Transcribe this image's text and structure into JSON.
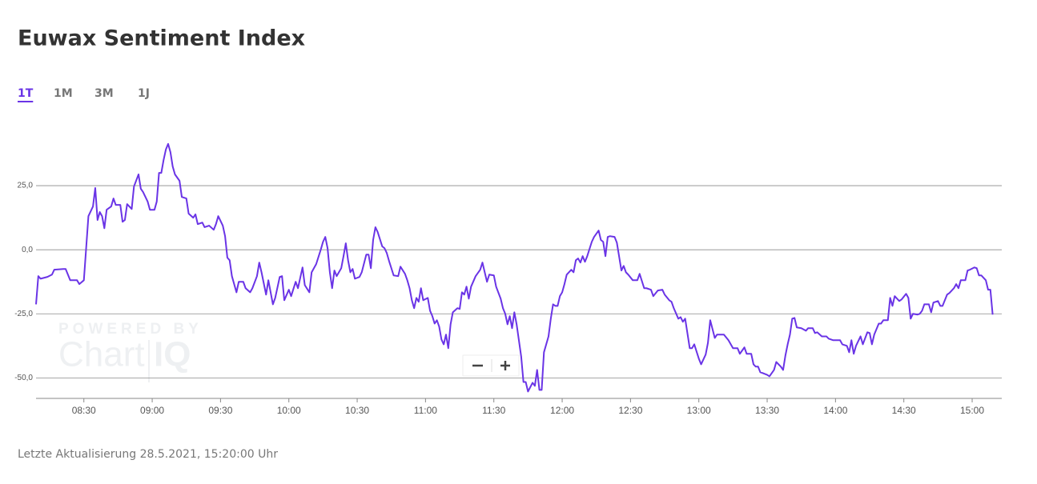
{
  "chart_data": {
    "type": "line",
    "title": "Euwax Sentiment Index",
    "color": "#6a34e6",
    "x": [
      "08:09",
      "08:10",
      "08:11",
      "08:14",
      "08:16",
      "08:17",
      "08:21",
      "08:22",
      "08:24",
      "08:27",
      "08:28",
      "08:30",
      "08:31",
      "08:32",
      "08:34",
      "08:35",
      "08:36",
      "08:37",
      "08:38",
      "08:39",
      "08:40",
      "08:42",
      "08:43",
      "08:44",
      "08:46",
      "08:47",
      "08:48",
      "08:49",
      "08:51",
      "08:52",
      "08:54",
      "08:55",
      "08:56",
      "08:58",
      "08:59",
      "09:01",
      "09:02",
      "09:03",
      "09:04",
      "09:05",
      "09:06",
      "09:07",
      "09:08",
      "09:09",
      "09:10",
      "09:12",
      "09:13",
      "09:15",
      "09:16",
      "09:18",
      "09:19",
      "09:20",
      "09:22",
      "09:23",
      "09:25",
      "09:27",
      "09:28",
      "09:29",
      "09:31",
      "09:32",
      "09:33",
      "09:34",
      "09:35",
      "09:37",
      "09:38",
      "09:40",
      "09:41",
      "09:43",
      "09:44",
      "09:46",
      "09:47",
      "09:48",
      "09:50",
      "09:51",
      "09:53",
      "09:54",
      "09:56",
      "09:57",
      "09:58",
      "10:00",
      "10:01",
      "10:03",
      "10:04",
      "10:06",
      "10:07",
      "10:09",
      "10:10",
      "10:12",
      "10:14",
      "10:15",
      "10:16",
      "10:17",
      "10:18",
      "10:19",
      "10:20",
      "10:21",
      "10:23",
      "10:24",
      "10:25",
      "10:26",
      "10:27",
      "10:28",
      "10:29",
      "10:31",
      "10:32",
      "10:34",
      "10:35",
      "10:36",
      "10:37",
      "10:38",
      "10:39",
      "10:41",
      "10:42",
      "10:43",
      "10:44",
      "10:45",
      "10:46",
      "10:48",
      "10:49",
      "10:51",
      "10:52",
      "10:53",
      "10:54",
      "10:55",
      "10:56",
      "10:57",
      "10:58",
      "10:59",
      "11:01",
      "11:02",
      "11:03",
      "11:04",
      "11:05",
      "11:06",
      "11:07",
      "11:08",
      "11:09",
      "11:10",
      "11:11",
      "11:12",
      "11:14",
      "11:15",
      "11:16",
      "11:17",
      "11:18",
      "11:19",
      "11:20",
      "11:22",
      "11:24",
      "11:25",
      "11:26",
      "11:27",
      "11:28",
      "11:30",
      "11:31",
      "11:33",
      "11:34",
      "11:35",
      "11:36",
      "11:37",
      "11:38",
      "11:39",
      "11:40",
      "11:42",
      "11:43",
      "11:44",
      "11:45",
      "11:47",
      "11:48",
      "11:49",
      "11:50",
      "11:51",
      "11:52",
      "11:54",
      "11:55",
      "11:56",
      "11:57",
      "11:58",
      "11:59",
      "12:00",
      "12:01",
      "12:02",
      "12:04",
      "12:05",
      "12:06",
      "12:07",
      "12:08",
      "12:09",
      "12:10",
      "12:11",
      "12:13",
      "12:14",
      "12:16",
      "12:17",
      "12:18",
      "12:19",
      "12:20",
      "12:21",
      "12:23",
      "12:24",
      "12:26",
      "12:27",
      "12:28",
      "12:29",
      "12:31",
      "12:33",
      "12:34",
      "12:36",
      "12:37",
      "12:39",
      "12:40",
      "12:42",
      "12:44",
      "12:45",
      "12:47",
      "12:48",
      "12:49",
      "12:51",
      "12:52",
      "12:53",
      "12:54",
      "12:56",
      "12:57",
      "12:58",
      "13:00",
      "13:01",
      "13:03",
      "13:04",
      "13:05",
      "13:07",
      "13:08",
      "13:10",
      "13:11",
      "13:13",
      "13:15",
      "13:17",
      "13:18",
      "13:20",
      "13:21",
      "13:23",
      "13:24",
      "13:25",
      "13:26",
      "13:27",
      "13:28",
      "13:30",
      "13:31",
      "13:33",
      "13:34",
      "13:36",
      "13:37",
      "13:38",
      "13:39",
      "13:40",
      "13:41",
      "13:42",
      "13:43",
      "13:45",
      "13:47",
      "13:48",
      "13:50",
      "13:51",
      "13:52",
      "13:54",
      "13:56",
      "13:57",
      "13:59",
      "14:01",
      "14:02",
      "14:03",
      "14:05",
      "14:06",
      "14:07",
      "14:08",
      "14:09",
      "14:11",
      "14:12",
      "14:14",
      "14:15",
      "14:16",
      "14:17",
      "14:19",
      "14:20",
      "14:21",
      "14:23",
      "14:24",
      "14:25",
      "14:26",
      "14:28",
      "14:29",
      "14:31",
      "14:32",
      "14:33",
      "14:34",
      "14:36",
      "14:37",
      "14:38",
      "14:39",
      "14:41",
      "14:42",
      "14:43",
      "14:45",
      "14:46",
      "14:47",
      "14:49",
      "14:50",
      "14:52",
      "14:53",
      "14:54",
      "14:55",
      "14:57",
      "14:58",
      "14:59",
      "15:01",
      "15:02",
      "15:03",
      "15:04",
      "15:06",
      "15:07",
      "15:08",
      "15:09"
    ],
    "values": [
      -21.3,
      -10.3,
      -11.3,
      -10.6,
      -9.7,
      -7.8,
      -7.5,
      -7.5,
      -11.9,
      -11.9,
      -13.4,
      -11.9,
      0.6,
      13.1,
      16.9,
      24.1,
      11.6,
      14.7,
      13.1,
      8.4,
      15.6,
      16.9,
      20,
      17.5,
      17.5,
      10.9,
      11.6,
      17.8,
      15.9,
      24.7,
      29.4,
      23.8,
      22.5,
      18.8,
      15.6,
      15.6,
      18.8,
      30,
      30,
      35,
      39.1,
      41.3,
      38.1,
      32.5,
      29.4,
      26.9,
      20.6,
      20,
      14.1,
      12.5,
      13.8,
      10,
      10.6,
      8.8,
      9.4,
      7.8,
      10,
      13.1,
      9.4,
      5.3,
      -3.1,
      -4.1,
      -10.3,
      -16.6,
      -12.5,
      -12.5,
      -15,
      -16.6,
      -15,
      -10.3,
      -5,
      -8.8,
      -17.5,
      -11.9,
      -21.3,
      -18.8,
      -10.6,
      -10.3,
      -19.7,
      -15.6,
      -18.1,
      -12.5,
      -15,
      -6.9,
      -13.8,
      -16.6,
      -8.8,
      -5.6,
      0,
      3.1,
      5,
      0.6,
      -8.8,
      -15,
      -8.1,
      -10.3,
      -7.2,
      -2.5,
      2.5,
      -4.1,
      -8.8,
      -7.5,
      -11.3,
      -10.6,
      -8.8,
      -1.9,
      -1.9,
      -7.2,
      3.8,
      8.8,
      6.9,
      1.3,
      0.6,
      -1.3,
      -4.4,
      -7.2,
      -10,
      -10.3,
      -6.6,
      -9.4,
      -11.9,
      -15,
      -19.7,
      -22.8,
      -18.8,
      -20.3,
      -15,
      -19.7,
      -18.8,
      -23.8,
      -25.9,
      -28.8,
      -27.5,
      -30,
      -35,
      -36.9,
      -33.1,
      -38.4,
      -29.1,
      -24.4,
      -22.8,
      -23.1,
      -16.6,
      -17.5,
      -14.4,
      -19.1,
      -14.4,
      -10.3,
      -7.8,
      -5,
      -8.8,
      -12.5,
      -9.7,
      -10,
      -14.4,
      -19.1,
      -22.8,
      -25,
      -29.1,
      -25.9,
      -30.6,
      -24.4,
      -29.1,
      -41.6,
      -51.6,
      -51.6,
      -55.3,
      -51.9,
      -53.1,
      -46.9,
      -54.7,
      -54.7,
      -40,
      -33.8,
      -26.9,
      -21.3,
      -21.9,
      -21.9,
      -18.1,
      -16.6,
      -13.4,
      -9.7,
      -7.8,
      -8.8,
      -4.1,
      -3.4,
      -5,
      -2.5,
      -4.7,
      -2.5,
      3.1,
      5,
      7.5,
      3.8,
      3.1,
      -2.5,
      5,
      5.3,
      5,
      2.8,
      -8.1,
      -6.3,
      -8.8,
      -9.7,
      -11.9,
      -11.9,
      -9.4,
      -15,
      -15,
      -15.6,
      -18.1,
      -15.9,
      -15.6,
      -17.5,
      -19.7,
      -20.3,
      -22.8,
      -26.9,
      -26.3,
      -28.1,
      -26.9,
      -38.4,
      -38.4,
      -36.9,
      -42.5,
      -44.7,
      -40.9,
      -36.3,
      -27.5,
      -34.4,
      -33.1,
      -33.1,
      -33.1,
      -35.3,
      -38.4,
      -38.4,
      -40.6,
      -38.1,
      -40.6,
      -40.6,
      -44.7,
      -45.6,
      -45.6,
      -47.8,
      -48.1,
      -48.8,
      -49.4,
      -46.9,
      -43.8,
      -45.6,
      -46.9,
      -41.3,
      -36.9,
      -33.1,
      -26.9,
      -26.6,
      -30.3,
      -30.6,
      -31.6,
      -30.6,
      -30.6,
      -32.5,
      -32.2,
      -33.8,
      -33.8,
      -34.7,
      -35.3,
      -35.3,
      -35.3,
      -36.9,
      -37.5,
      -40,
      -35.3,
      -40.6,
      -37.5,
      -33.8,
      -36.9,
      -32.2,
      -32.5,
      -36.9,
      -33.1,
      -28.8,
      -28.8,
      -27.5,
      -27.5,
      -18.8,
      -21.9,
      -18.1,
      -20,
      -19.4,
      -17.2,
      -18.8,
      -26.9,
      -25,
      -25.3,
      -25,
      -23.8,
      -21.3,
      -21.3,
      -24.4,
      -20.6,
      -20,
      -21.9,
      -21.9,
      -17.5,
      -16.9,
      -15,
      -13.4,
      -15,
      -11.9,
      -11.9,
      -8.1,
      -7.8,
      -6.9,
      -7.2,
      -10,
      -10,
      -11.9,
      -15.6,
      -15.6,
      -25.3
    ],
    "xlim": [
      "08:09",
      "15:13"
    ],
    "xticks": [
      "08:30",
      "09:00",
      "09:30",
      "10:00",
      "10:30",
      "11:00",
      "11:30",
      "12:00",
      "12:30",
      "13:00",
      "13:30",
      "14:00",
      "14:30",
      "15:00"
    ],
    "ylim": [
      -58,
      47.5
    ],
    "yticks": [
      {
        "value": -50,
        "label": "-50,0"
      },
      {
        "value": -25,
        "label": "-25,0"
      },
      {
        "value": 0,
        "label": "0,0"
      },
      {
        "value": 25,
        "label": "25,0"
      }
    ],
    "grid": true
  },
  "tabs": [
    "1T",
    "1M",
    "3M",
    "1J"
  ],
  "watermark": {
    "line1": "POWERED BY",
    "brand": "Chart",
    "brand_suffix": "IQ"
  },
  "last_update": "Letzte Aktualisierung 28.5.2021, 15:20:00 Uhr"
}
